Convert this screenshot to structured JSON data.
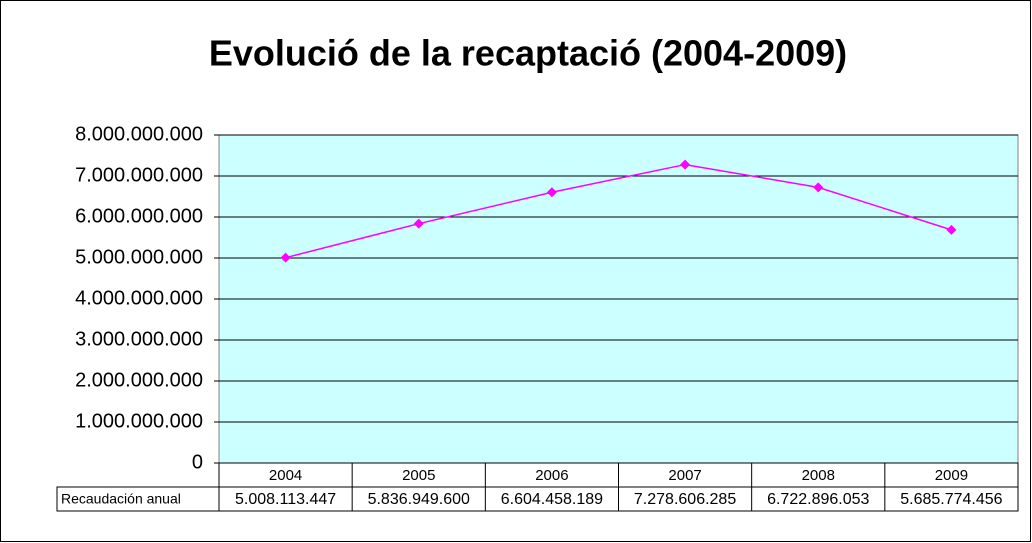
{
  "chart_data": {
    "type": "line",
    "title": "Evolució de la recaptació (2004-2009)",
    "categories": [
      "2004",
      "2005",
      "2006",
      "2007",
      "2008",
      "2009"
    ],
    "series": [
      {
        "name": "Recaudación anual",
        "color": "#ff00ff",
        "values": [
          5008113447,
          5836949600,
          6604458189,
          7278606285,
          6722896053,
          5685774456
        ],
        "value_labels": [
          "5.008.113.447",
          "5.836.949.600",
          "6.604.458.189",
          "7.278.606.285",
          "6.722.896.053",
          "5.685.774.456"
        ]
      }
    ],
    "ylim": [
      0,
      8000000000
    ],
    "yticks": [
      0,
      {
        "value": 1000000000,
        "label": "1.000.000.000"
      },
      {
        "value": 2000000000,
        "label": "2.000.000.000"
      },
      {
        "value": 3000000000,
        "label": "3.000.000.000"
      },
      {
        "value": 4000000000,
        "label": "4.000.000.000"
      },
      {
        "value": 5000000000,
        "label": "5.000.000.000"
      },
      {
        "value": 6000000000,
        "label": "6.000.000.000"
      },
      {
        "value": 7000000000,
        "label": "7.000.000.000"
      },
      {
        "value": 8000000000,
        "label": "8.000.000.000"
      }
    ],
    "grid": true,
    "plot_background": "#ccffff"
  }
}
